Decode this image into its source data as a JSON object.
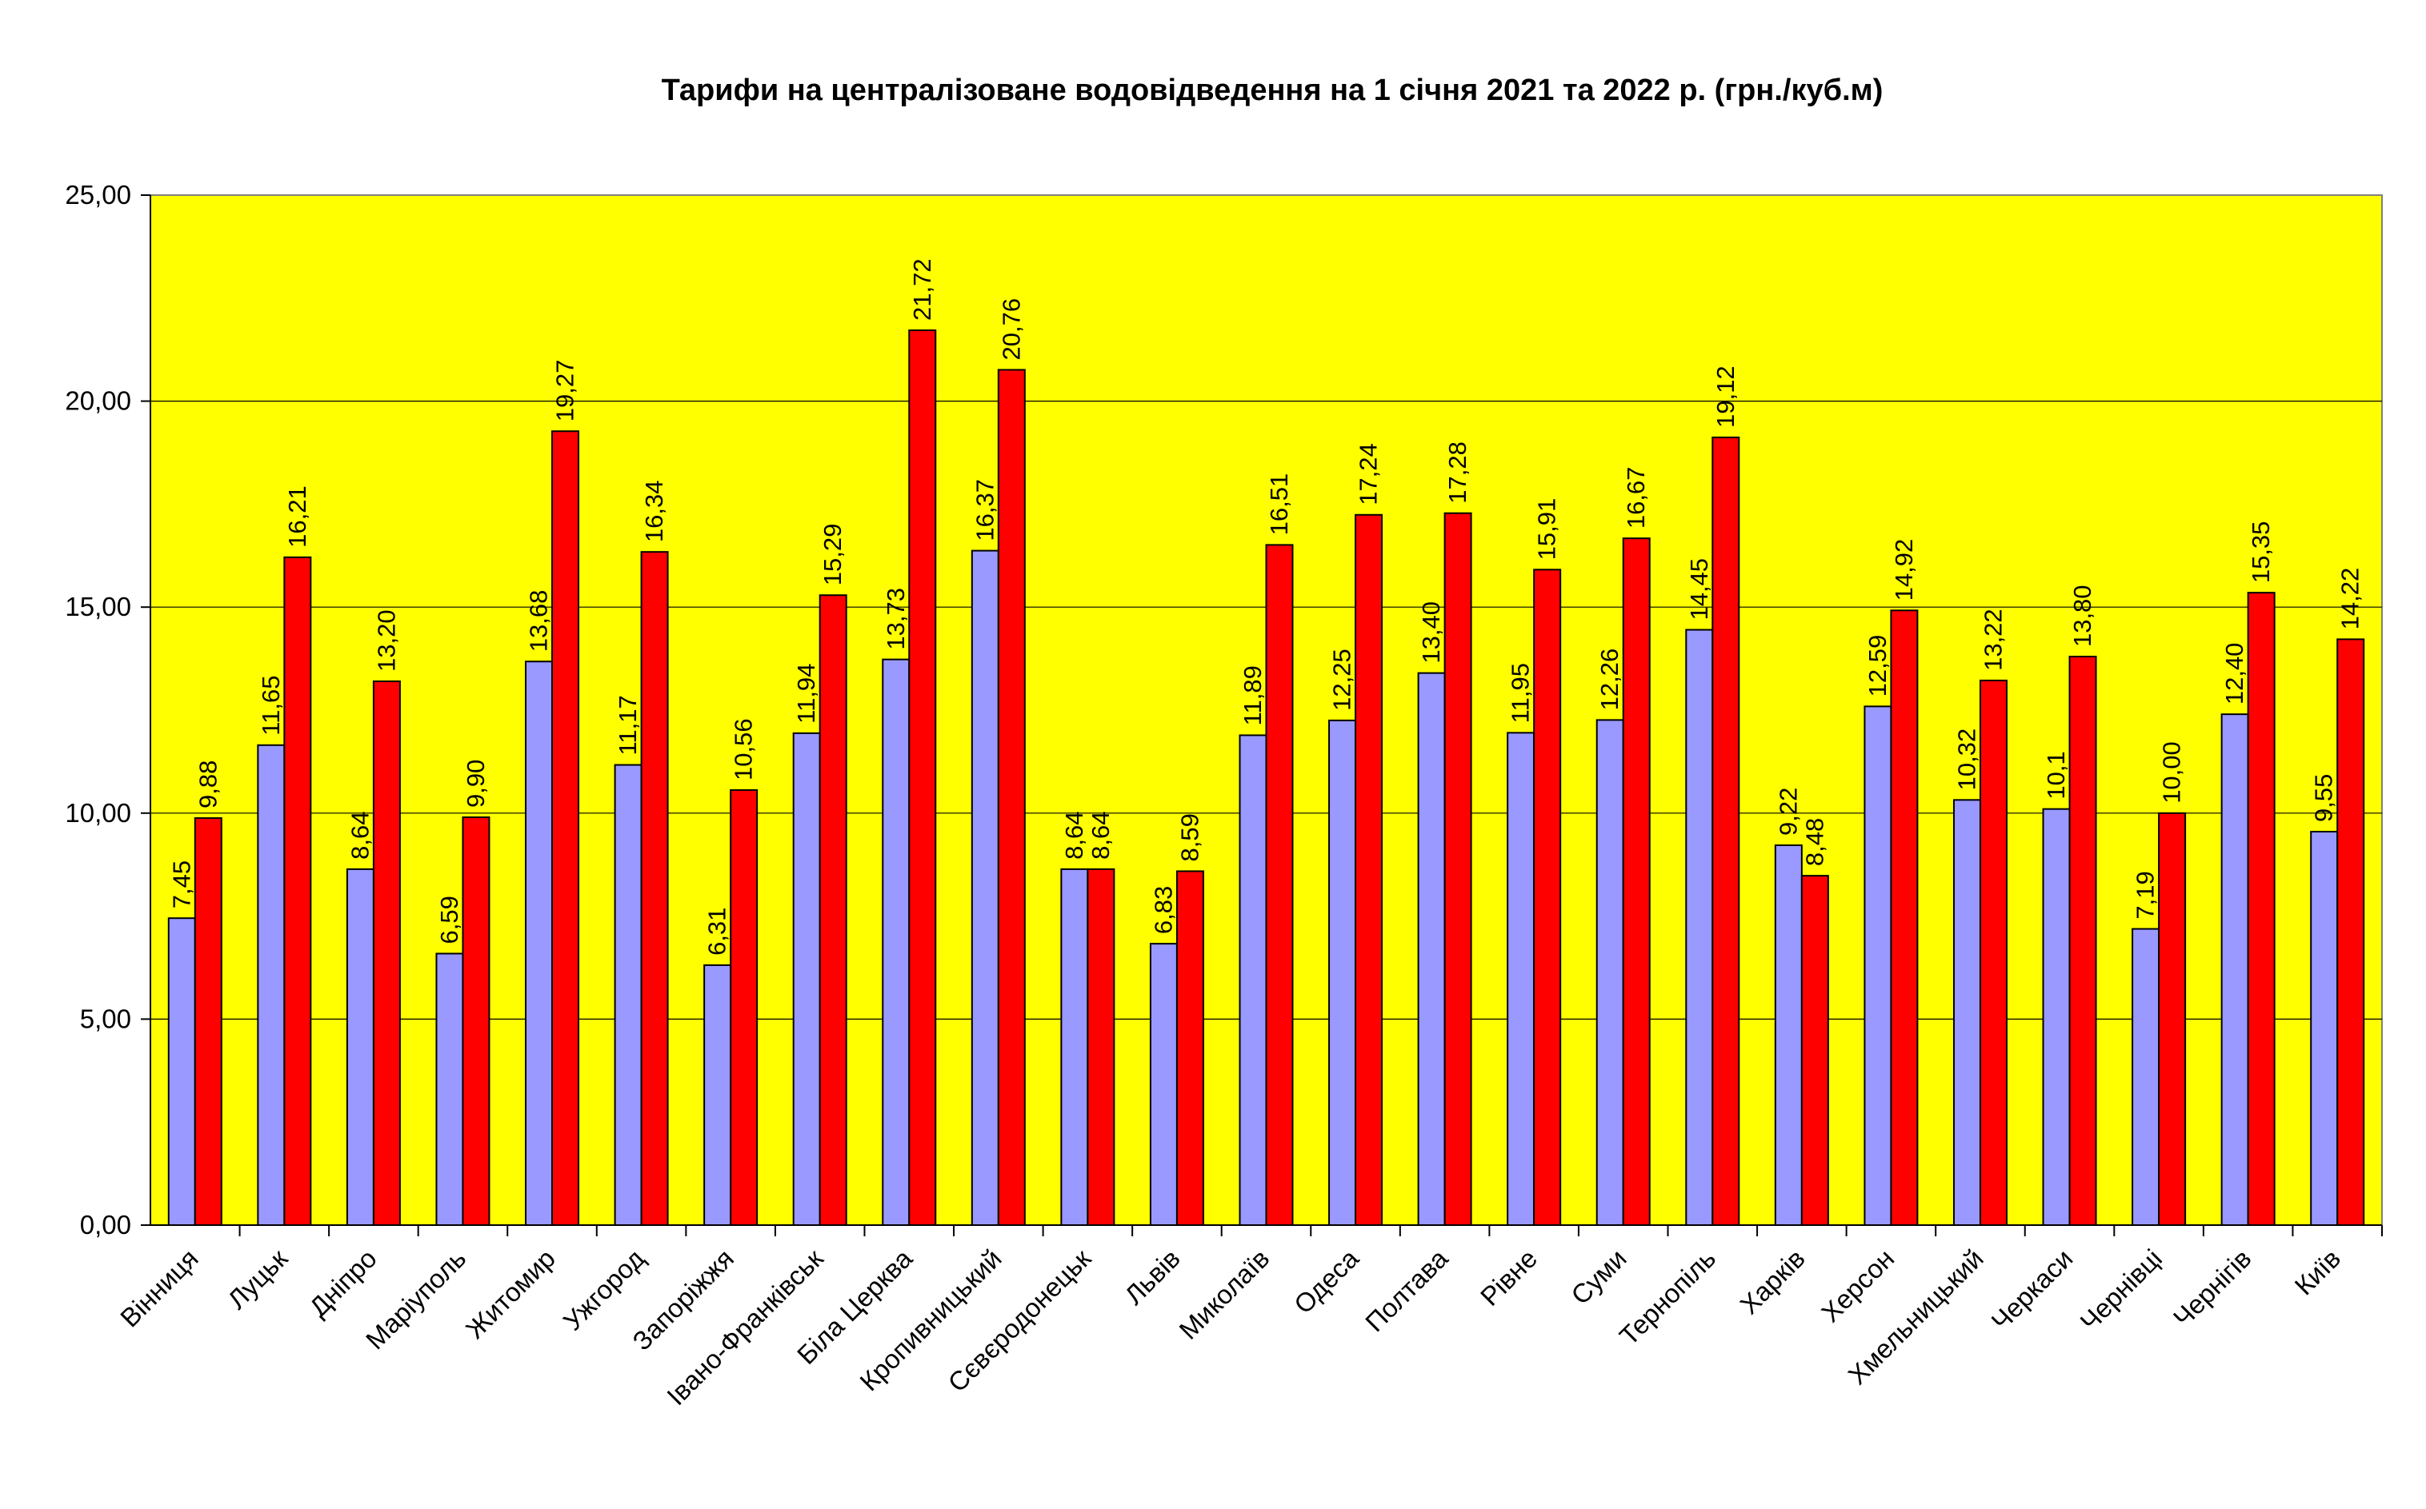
{
  "chart_data": {
    "type": "bar",
    "title": "Тарифи на централізоване водовідведення на 1 січня 2021 та 2022 р. (грн./куб.м)",
    "ylim": [
      0,
      25
    ],
    "y_ticks": [
      "0,00",
      "5,00",
      "10,00",
      "15,00",
      "20,00",
      "25,00"
    ],
    "grid": true,
    "legend": "none",
    "plot_background": "#FFFF00",
    "categories": [
      "Вінниця",
      "Луцьк",
      "Дніпро",
      "Маріуполь",
      "Житомир",
      "Ужгород",
      "Запоріжжя",
      "Івано-Франківськ",
      "Біла Церква",
      "Кропивницький",
      "Сєвєродонецьк",
      "Львів",
      "Миколаїв",
      "Одеса",
      "Полтава",
      "Рівне",
      "Суми",
      "Тернопіль",
      "Харків",
      "Херсон",
      "Хмельницький",
      "Черкаси",
      "Чернівці",
      "Чернігів",
      "Київ"
    ],
    "series": [
      {
        "color": "#9999FF",
        "values": [
          7.45,
          11.65,
          8.64,
          6.59,
          13.68,
          11.17,
          6.31,
          11.94,
          13.73,
          16.37,
          8.64,
          6.83,
          11.89,
          12.25,
          13.4,
          11.95,
          12.26,
          14.45,
          9.22,
          12.59,
          10.32,
          10.1,
          7.19,
          12.4,
          9.55
        ],
        "labels": [
          "7,45",
          "11,65",
          "8,64",
          "6,59",
          "13,68",
          "11,17",
          "6,31",
          "11,94",
          "13,73",
          "16,37",
          "8,64",
          "6,83",
          "11,89",
          "12,25",
          "13,40",
          "11,95",
          "12,26",
          "14,45",
          "9,22",
          "12,59",
          "10,32",
          "10,1",
          "7,19",
          "12,40",
          "9,55"
        ]
      },
      {
        "color": "#FF0000",
        "values": [
          9.88,
          16.21,
          13.2,
          9.9,
          19.27,
          16.34,
          10.56,
          15.29,
          21.72,
          20.76,
          8.64,
          8.59,
          16.51,
          17.24,
          17.28,
          15.91,
          16.67,
          19.12,
          8.48,
          14.92,
          13.22,
          13.8,
          10.0,
          15.35,
          14.22
        ],
        "labels": [
          "9,88",
          "16,21",
          "13,20",
          "9,90",
          "19,27",
          "16,34",
          "10,56",
          "15,29",
          "21,72",
          "20,76",
          "8,64",
          "8,59",
          "16,51",
          "17,24",
          "17,28",
          "15,91",
          "16,67",
          "19,12",
          "8,48",
          "14,92",
          "13,22",
          "13,80",
          "10,00",
          "15,35",
          "14,22"
        ]
      }
    ]
  }
}
